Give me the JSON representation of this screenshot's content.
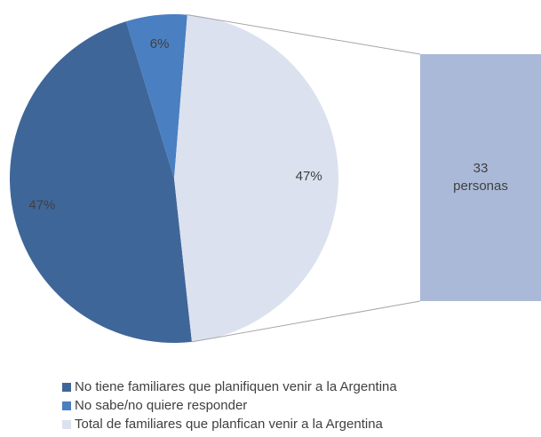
{
  "chart_data": {
    "type": "pie-of-bar",
    "categories": [
      "No tiene familiares que planifiquen venir a la Argentina",
      "No sabe/no quiere responder",
      "Total de familiares que planfican venir a la Argentina"
    ],
    "values": [
      47,
      6,
      47
    ],
    "value_labels": [
      "47%",
      "6%",
      "47%"
    ],
    "colors": [
      "#3f6699",
      "#4a7fc1",
      "#dbe1ef"
    ],
    "bar": {
      "values": [
        33
      ],
      "value_labels": [
        "33 personas"
      ],
      "color": "#abb9d8"
    },
    "legend": "bottom"
  }
}
